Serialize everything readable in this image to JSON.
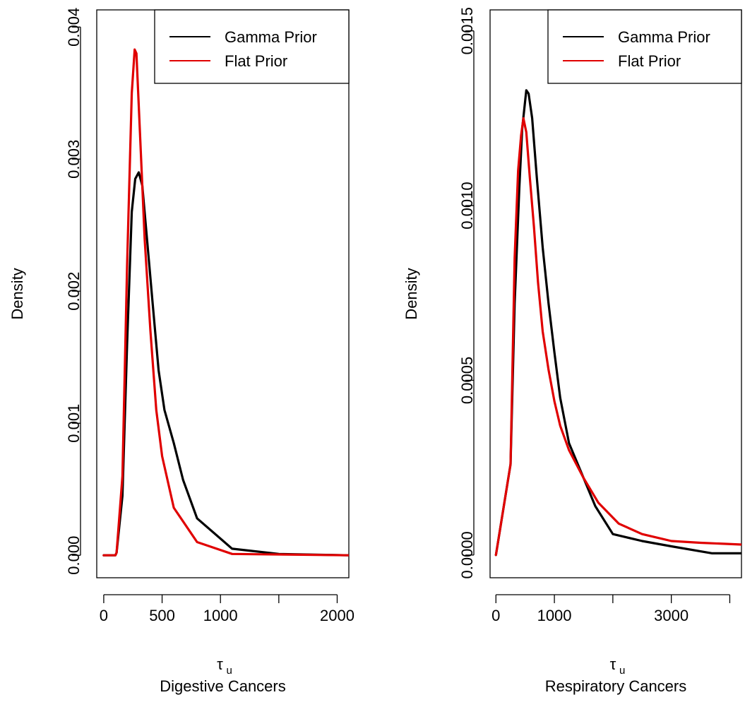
{
  "chart_data": [
    {
      "type": "line",
      "title": "",
      "xlabel_symbol": "τ",
      "xlabel_subscript": "u",
      "xlabel_caption": "Digestive Cancers",
      "ylabel": "Density",
      "xlim": [
        -60,
        2100
      ],
      "ylim": [
        -0.00017,
        0.00413
      ],
      "x_ticks": [
        0,
        500,
        1000,
        1500,
        2000
      ],
      "x_tick_labels": [
        "0",
        "500",
        "1000",
        "",
        "2000"
      ],
      "y_ticks": [
        0,
        0.001,
        0.002,
        0.003,
        0.004
      ],
      "y_tick_labels": [
        "0.000",
        "0.001",
        "0.002",
        "0.003",
        "0.004"
      ],
      "legend": {
        "placement": "top-right",
        "entries": [
          "Gamma Prior",
          "Flat Prior"
        ]
      },
      "series": [
        {
          "name": "Gamma Prior",
          "color": "#000000",
          "points": [
            [
              0,
              0.0
            ],
            [
              100,
              0.0
            ],
            [
              110,
              2e-05
            ],
            [
              160,
              0.00045
            ],
            [
              200,
              0.0016
            ],
            [
              240,
              0.0026
            ],
            [
              270,
              0.00285
            ],
            [
              300,
              0.0029
            ],
            [
              330,
              0.0028
            ],
            [
              370,
              0.0024
            ],
            [
              420,
              0.0019
            ],
            [
              470,
              0.0014
            ],
            [
              520,
              0.0011
            ],
            [
              600,
              0.00085
            ],
            [
              680,
              0.00057
            ],
            [
              800,
              0.00028
            ],
            [
              1100,
              5e-05
            ],
            [
              1500,
              1e-05
            ],
            [
              2100,
              0.0
            ]
          ]
        },
        {
          "name": "Flat Prior",
          "color": "#e00000",
          "points": [
            [
              0,
              0.0
            ],
            [
              100,
              0.0
            ],
            [
              110,
              2e-05
            ],
            [
              160,
              0.0006
            ],
            [
              200,
              0.0022
            ],
            [
              240,
              0.0035
            ],
            [
              265,
              0.00383
            ],
            [
              280,
              0.0038
            ],
            [
              310,
              0.0032
            ],
            [
              350,
              0.0024
            ],
            [
              400,
              0.0017
            ],
            [
              450,
              0.0011
            ],
            [
              500,
              0.00075
            ],
            [
              600,
              0.00036
            ],
            [
              800,
              0.0001
            ],
            [
              900,
              7e-05
            ],
            [
              1100,
              1e-05
            ],
            [
              2100,
              0.0
            ]
          ]
        }
      ]
    },
    {
      "type": "line",
      "title": "",
      "xlabel_symbol": "τ",
      "xlabel_subscript": "u",
      "xlabel_caption": "Respiratory Cancers",
      "ylabel": "Density",
      "xlim": [
        -100,
        4200
      ],
      "ylim": [
        -6.5e-05,
        0.00156
      ],
      "x_ticks": [
        0,
        1000,
        2000,
        3000,
        4000
      ],
      "x_tick_labels": [
        "0",
        "1000",
        "",
        "3000",
        ""
      ],
      "y_ticks": [
        0,
        0.0005,
        0.001,
        0.0015
      ],
      "y_tick_labels": [
        "0.0000",
        "0.0005",
        "0.0010",
        "0.0015"
      ],
      "legend": {
        "placement": "top-right",
        "entries": [
          "Gamma Prior",
          "Flat Prior"
        ]
      },
      "series": [
        {
          "name": "Gamma Prior",
          "color": "#000000",
          "points": [
            [
              0,
              0.0
            ],
            [
              250,
              0.00026
            ],
            [
              320,
              0.00072
            ],
            [
              400,
              0.00105
            ],
            [
              450,
              0.00122
            ],
            [
              500,
              0.0013
            ],
            [
              520,
              0.00133
            ],
            [
              560,
              0.00132
            ],
            [
              620,
              0.00125
            ],
            [
              700,
              0.00108
            ],
            [
              800,
              0.00088
            ],
            [
              900,
              0.00072
            ],
            [
              1000,
              0.00058
            ],
            [
              1100,
              0.00045
            ],
            [
              1250,
              0.00032
            ],
            [
              1500,
              0.00022
            ],
            [
              1700,
              0.00014
            ],
            [
              2000,
              6e-05
            ],
            [
              2500,
              4e-05
            ],
            [
              3000,
              2.5e-05
            ],
            [
              3700,
              5e-06
            ],
            [
              4200,
              5e-06
            ]
          ]
        },
        {
          "name": "Flat Prior",
          "color": "#e00000",
          "points": [
            [
              0,
              0.0
            ],
            [
              250,
              0.00026
            ],
            [
              320,
              0.00085
            ],
            [
              380,
              0.0011
            ],
            [
              430,
              0.0012
            ],
            [
              470,
              0.00125
            ],
            [
              520,
              0.00121
            ],
            [
              580,
              0.00108
            ],
            [
              650,
              0.00094
            ],
            [
              720,
              0.00078
            ],
            [
              800,
              0.00064
            ],
            [
              900,
              0.00053
            ],
            [
              1000,
              0.00044
            ],
            [
              1100,
              0.00037
            ],
            [
              1250,
              0.0003
            ],
            [
              1500,
              0.00022
            ],
            [
              1750,
              0.00015
            ],
            [
              2100,
              9e-05
            ],
            [
              2500,
              6e-05
            ],
            [
              3000,
              4e-05
            ],
            [
              3500,
              3.5e-05
            ],
            [
              4200,
              3e-05
            ]
          ]
        }
      ]
    }
  ]
}
